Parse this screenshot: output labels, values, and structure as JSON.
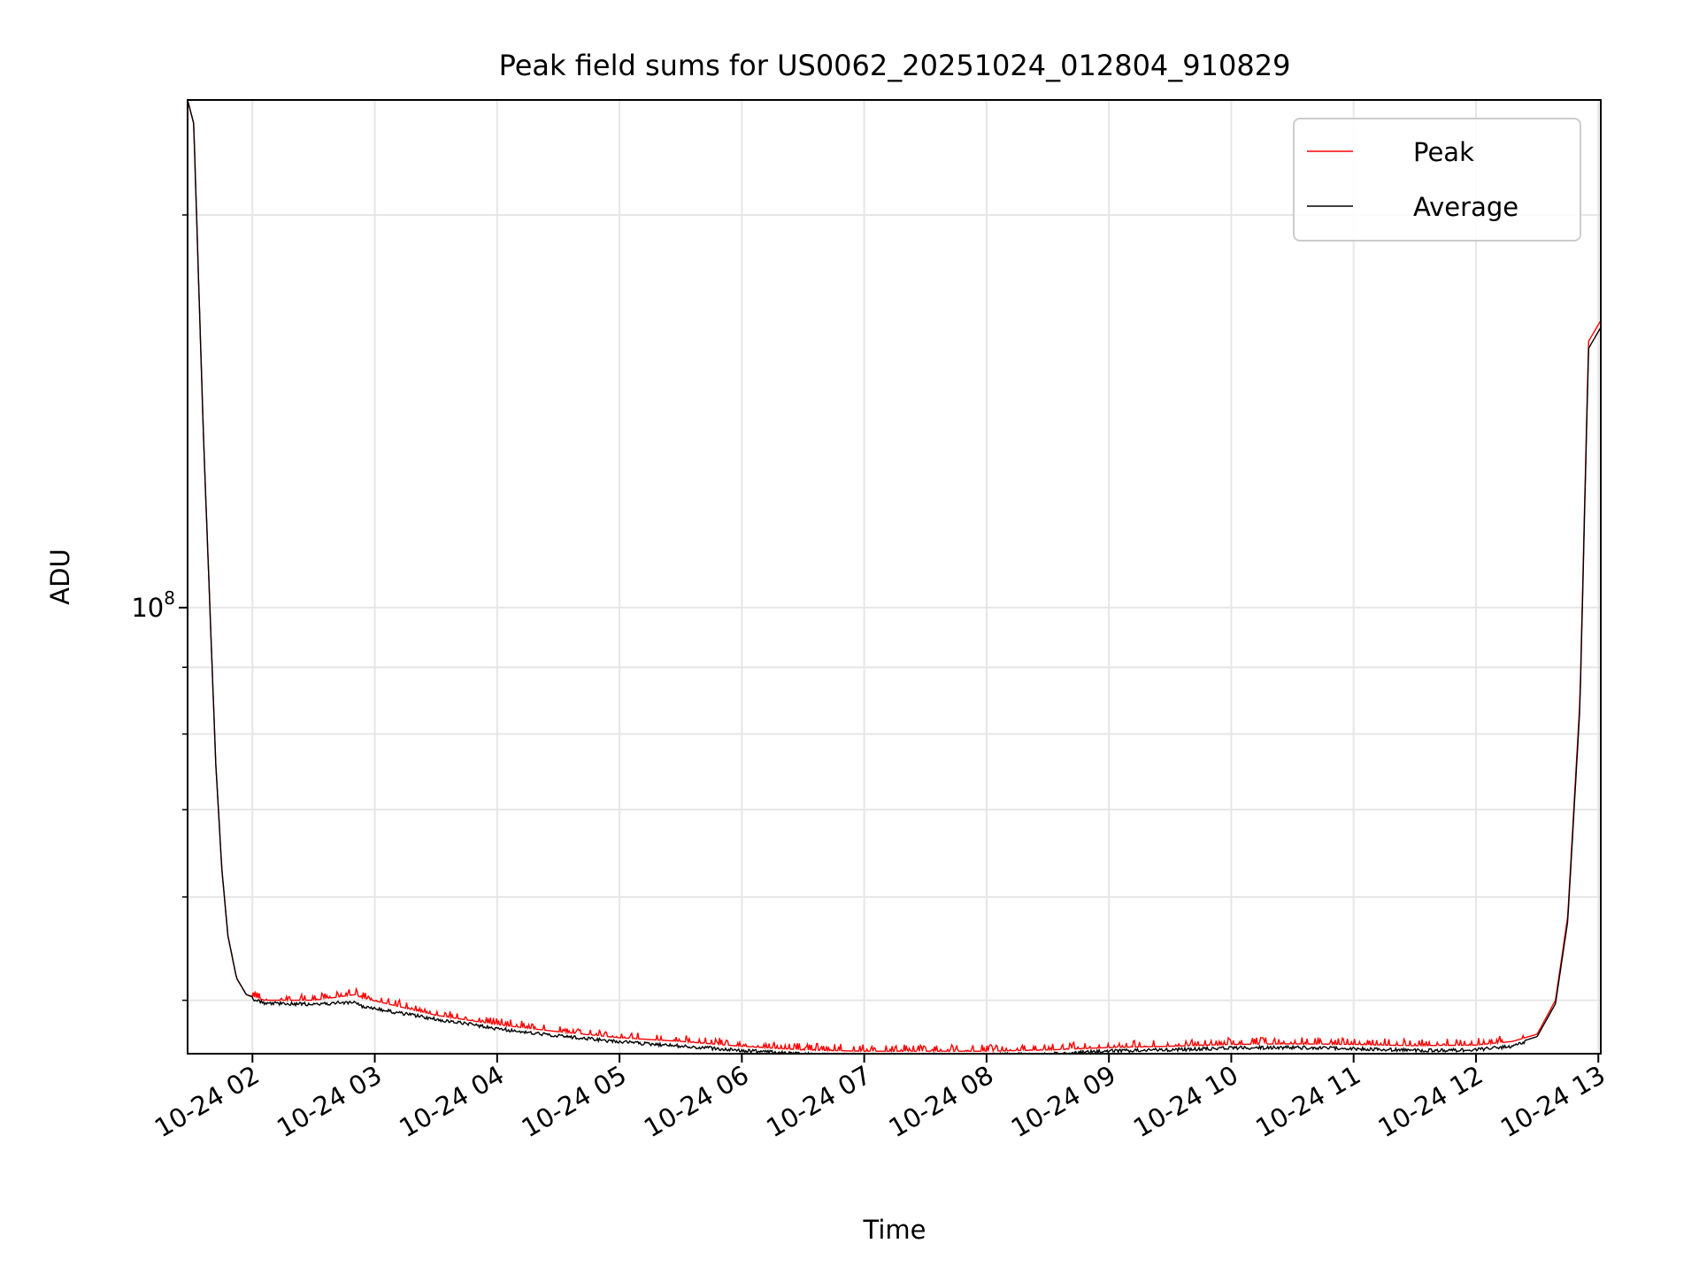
{
  "chart_data": {
    "type": "line",
    "title": "Peak field sums for US0062_20251024_012804_910829",
    "xlabel": "Time",
    "ylabel": "ADU",
    "yscale": "log",
    "xlim": [
      1.47,
      13.02
    ],
    "ylim": [
      45500000.0,
      245000000.0
    ],
    "x_ticks": [
      {
        "value": 2,
        "label": "10-24 02"
      },
      {
        "value": 3,
        "label": "10-24 03"
      },
      {
        "value": 4,
        "label": "10-24 04"
      },
      {
        "value": 5,
        "label": "10-24 05"
      },
      {
        "value": 6,
        "label": "10-24 06"
      },
      {
        "value": 7,
        "label": "10-24 07"
      },
      {
        "value": 8,
        "label": "10-24 08"
      },
      {
        "value": 9,
        "label": "10-24 09"
      },
      {
        "value": 10,
        "label": "10-24 10"
      },
      {
        "value": 11,
        "label": "10-24 11"
      },
      {
        "value": 12,
        "label": "10-24 12"
      },
      {
        "value": 13,
        "label": "10-24 13"
      }
    ],
    "y_major_ticks": [
      {
        "value": 100000000,
        "base": "10",
        "exponent": "8"
      }
    ],
    "y_minor_ticks": [
      50000000,
      60000000,
      70000000,
      80000000,
      90000000,
      200000000
    ],
    "grid": true,
    "legend": {
      "position": "top-right",
      "entries": [
        {
          "label": "Peak",
          "color": "#ff0000"
        },
        {
          "label": "Average",
          "color": "#000000"
        }
      ]
    },
    "series": [
      {
        "name": "Peak",
        "color": "#ff0000",
        "spike_density": 0.35,
        "x": [
          1.47,
          1.52,
          1.6,
          1.7,
          1.75,
          1.8,
          1.87,
          1.95,
          2.1,
          2.5,
          2.84,
          2.9,
          3.5,
          4.0,
          4.5,
          5.0,
          5.5,
          6.0,
          6.5,
          7.0,
          7.5,
          8.0,
          8.5,
          9.0,
          9.5,
          10.0,
          10.5,
          11.0,
          11.5,
          12.0,
          12.3,
          12.5,
          12.65,
          12.75,
          12.85,
          12.92,
          13.02
        ],
        "y": [
          245000000,
          235000000,
          135000000,
          76000000,
          63000000,
          56000000,
          52000000,
          50500000,
          50000000,
          50000000,
          50500000,
          50200000,
          48700000,
          47900000,
          47300000,
          46800000,
          46500000,
          46100000,
          45800000,
          45700000,
          45700000,
          45700000,
          45800000,
          46000000,
          46100000,
          46250000,
          46300000,
          46250000,
          46150000,
          46200000,
          46500000,
          47100000,
          50000000,
          58000000,
          85000000,
          160000000,
          166000000
        ]
      },
      {
        "name": "Average",
        "color": "#000000",
        "x": [
          1.47,
          1.52,
          1.6,
          1.7,
          1.75,
          1.8,
          1.87,
          1.95,
          2.1,
          2.5,
          2.84,
          2.9,
          3.5,
          4.0,
          4.5,
          5.0,
          5.5,
          6.0,
          6.5,
          7.0,
          7.5,
          8.0,
          8.5,
          9.0,
          9.5,
          10.0,
          10.5,
          11.0,
          11.5,
          12.0,
          12.3,
          12.5,
          12.65,
          12.75,
          12.85,
          12.92,
          13.02
        ],
        "y": [
          245000000,
          235000000,
          135000000,
          76000000,
          63000000,
          56000000,
          52000000,
          50500000,
          49900000,
          49800000,
          50000000,
          49600000,
          48500000,
          47700000,
          47100000,
          46600000,
          46250000,
          45900000,
          45600000,
          45500000,
          45500000,
          45550000,
          45600000,
          45850000,
          45950000,
          46100000,
          46150000,
          46050000,
          45900000,
          45950000,
          46250000,
          46900000,
          49700000,
          57500000,
          84000000,
          158000000,
          164000000
        ]
      }
    ]
  }
}
